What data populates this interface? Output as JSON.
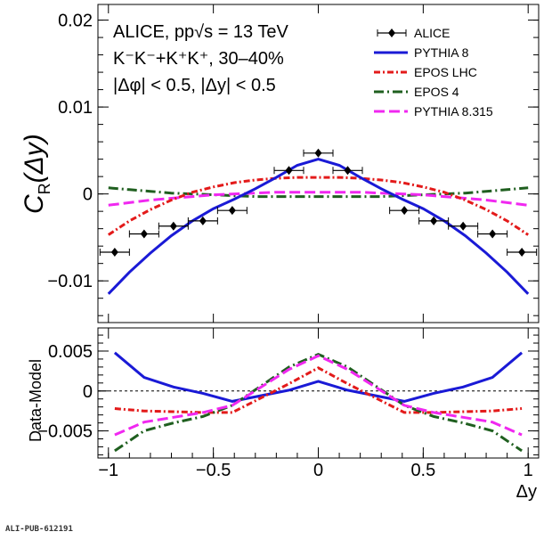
{
  "chart_data": [
    {
      "type": "scatter+line",
      "panel": "top",
      "ylabel_main": "C",
      "ylabel_sub": "R",
      "ylabel_arg": "(Δy)",
      "xlim": [
        -1.05,
        1.05
      ],
      "ylim": [
        -0.0148,
        0.0218
      ],
      "yticks": [
        -0.01,
        0,
        0.01,
        0.02
      ],
      "ytick_labels": [
        "−0.01",
        "0",
        "0.01",
        "0.02"
      ],
      "annotation": [
        "ALICE, pp√s = 13 TeV",
        "K⁻K⁻+K⁺K⁺, 30–40%",
        "|Δφ| < 0.5, |Δy| < 0.5"
      ],
      "legend_position": "top-right",
      "legend": [
        {
          "name": "ALICE",
          "style": "marker"
        },
        {
          "name": "PYTHIA 8",
          "style": "solid",
          "color": "#1a1ad6"
        },
        {
          "name": "EPOS LHC",
          "style": "dashdot",
          "color": "#e31a1a"
        },
        {
          "name": "EPOS 4",
          "style": "longdashdot",
          "color": "#1f5f1f"
        },
        {
          "name": "PYTHIA 8.315",
          "style": "longdash",
          "color": "#f028f0"
        }
      ],
      "data_points": {
        "x": [
          -0.97,
          -0.83,
          -0.69,
          -0.55,
          -0.41,
          -0.14,
          0.0,
          0.14,
          0.41,
          0.55,
          0.69,
          0.83,
          0.97
        ],
        "y": [
          -0.0067,
          -0.0046,
          -0.0037,
          -0.0031,
          -0.0019,
          0.0027,
          0.0047,
          0.0027,
          -0.0019,
          -0.0031,
          -0.0037,
          -0.0046,
          -0.0067
        ],
        "xerr": 0.07
      },
      "curves": {
        "x": [
          -1.0,
          -0.9,
          -0.8,
          -0.7,
          -0.6,
          -0.5,
          -0.4,
          -0.3,
          -0.2,
          -0.1,
          0.0,
          0.1,
          0.2,
          0.3,
          0.4,
          0.5,
          0.6,
          0.7,
          0.8,
          0.9,
          1.0
        ],
        "PYTHIA 8": [
          -0.0115,
          -0.009,
          -0.0068,
          -0.0048,
          -0.0031,
          -0.0017,
          -0.0006,
          0.0006,
          0.0019,
          0.0033,
          0.004,
          0.0033,
          0.0019,
          0.0006,
          -0.0006,
          -0.0017,
          -0.0031,
          -0.0048,
          -0.0068,
          -0.009,
          -0.0115
        ],
        "EPOS LHC": [
          -0.0047,
          -0.0031,
          -0.0018,
          -0.0007,
          0.0002,
          0.0008,
          0.0013,
          0.0016,
          0.0018,
          0.0019,
          0.0019,
          0.0019,
          0.0018,
          0.0016,
          0.0013,
          0.0008,
          0.0002,
          -0.0007,
          -0.0018,
          -0.0031,
          -0.0047
        ],
        "EPOS 4": [
          0.0007,
          0.0005,
          0.0003,
          0.0001,
          0.0,
          -0.0001,
          -0.0002,
          -0.0003,
          -0.0003,
          -0.0003,
          -0.0003,
          -0.0003,
          -0.0003,
          -0.0003,
          -0.0002,
          -0.0001,
          0.0,
          0.0001,
          0.0003,
          0.0005,
          0.0007
        ],
        "PYTHIA 8.315": [
          -0.0013,
          -0.001,
          -0.0007,
          -0.0005,
          -0.0003,
          -0.0001,
          0.0,
          0.0001,
          0.0002,
          0.0002,
          0.0002,
          0.0002,
          0.0002,
          0.0001,
          0.0,
          -0.0001,
          -0.0003,
          -0.0005,
          -0.0007,
          -0.001,
          -0.0013
        ]
      }
    },
    {
      "type": "line",
      "panel": "bottom",
      "ylabel": "Data-Model",
      "xlabel": "Δy",
      "xlim": [
        -1.05,
        1.05
      ],
      "ylim": [
        -0.0084,
        0.0079
      ],
      "xticks": [
        -1,
        -0.5,
        0,
        0.5,
        1
      ],
      "xtick_labels": [
        "−1",
        "−0.5",
        "0",
        "0.5",
        "1"
      ],
      "yticks": [
        -0.005,
        0,
        0.005
      ],
      "ytick_labels": [
        "−0.005",
        "0",
        "0.005"
      ],
      "reference_line_y": 0,
      "x": [
        -0.97,
        -0.83,
        -0.69,
        -0.55,
        -0.41,
        -0.14,
        0.0,
        0.14,
        0.41,
        0.55,
        0.69,
        0.83,
        0.97
      ],
      "series": [
        {
          "name": "PYTHIA 8",
          "values": [
            0.0048,
            0.0017,
            0.0005,
            -0.0003,
            -0.0013,
            0.0001,
            0.0012,
            0.0001,
            -0.0013,
            -0.0003,
            0.0005,
            0.0017,
            0.0048
          ]
        },
        {
          "name": "EPOS LHC",
          "values": [
            -0.0022,
            -0.0025,
            -0.0026,
            -0.0027,
            -0.0027,
            0.0009,
            0.0029,
            0.0009,
            -0.0027,
            -0.0027,
            -0.0026,
            -0.0025,
            -0.0022
          ]
        },
        {
          "name": "EPOS 4",
          "values": [
            -0.0075,
            -0.005,
            -0.004,
            -0.0032,
            -0.0018,
            0.003,
            0.0046,
            0.003,
            -0.0018,
            -0.0032,
            -0.004,
            -0.005,
            -0.0075
          ]
        },
        {
          "name": "PYTHIA 8.315",
          "values": [
            -0.0055,
            -0.0039,
            -0.0033,
            -0.0027,
            -0.0018,
            0.0027,
            0.0044,
            0.0027,
            -0.0018,
            -0.0027,
            -0.0033,
            -0.0039,
            -0.0055
          ]
        }
      ]
    }
  ],
  "footer": "ALI-PUB-612191"
}
